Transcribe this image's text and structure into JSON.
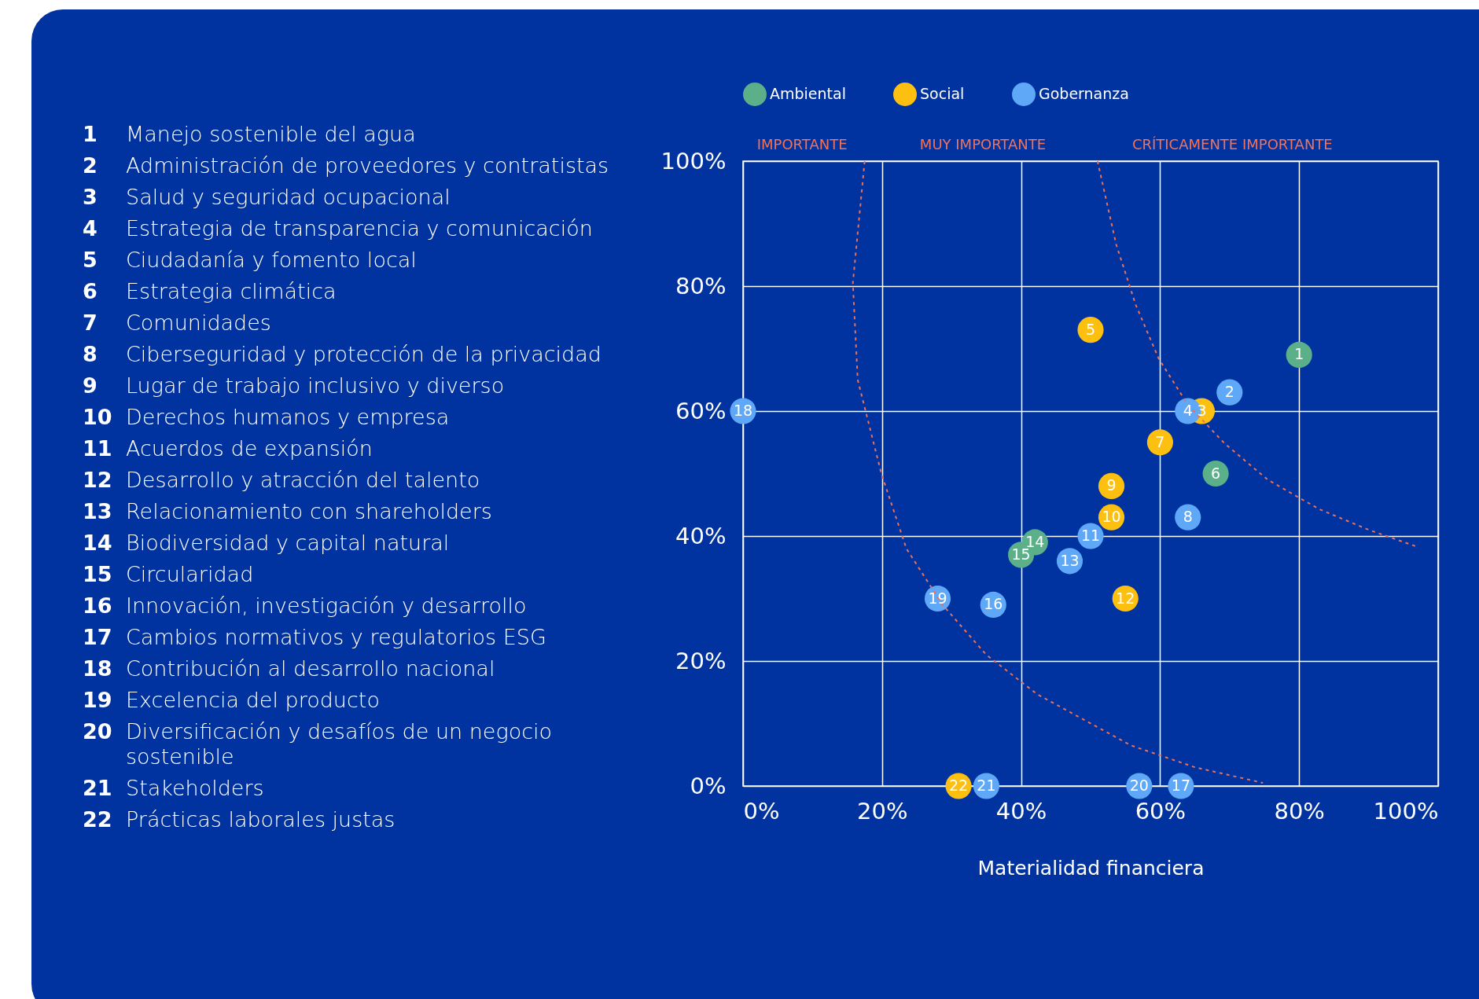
{
  "chart_data": {
    "type": "scatter",
    "xlabel": "Materialidad financiera",
    "xlim": [
      0,
      100
    ],
    "ylim": [
      0,
      100
    ],
    "xticks": [
      {
        "value": 0,
        "label": "0%"
      },
      {
        "value": 20,
        "label": "20%"
      },
      {
        "value": 40,
        "label": "40%"
      },
      {
        "value": 60,
        "label": "60%"
      },
      {
        "value": 80,
        "label": "80%"
      },
      {
        "value": 100,
        "label": "100%"
      }
    ],
    "yticks": [
      {
        "value": 0,
        "label": "0%"
      },
      {
        "value": 20,
        "label": "20%"
      },
      {
        "value": 40,
        "label": "40%"
      },
      {
        "value": 60,
        "label": "60%"
      },
      {
        "value": 80,
        "label": "80%"
      },
      {
        "value": 100,
        "label": "100%"
      }
    ],
    "grid": true,
    "legend": "top",
    "series": [
      {
        "name": "Ambiental",
        "color": "#5bb08a",
        "x": [
          80,
          68,
          42,
          40
        ],
        "values": [
          69,
          50,
          39,
          37
        ]
      },
      {
        "name": "Social",
        "color": "#fdc010",
        "x": [
          66,
          50,
          60,
          53,
          53,
          55,
          31
        ],
        "values": [
          60,
          73,
          55,
          48,
          43,
          30,
          0
        ]
      },
      {
        "name": "Gobernanza",
        "color": "#5fa8f7",
        "x": [
          70,
          64,
          64,
          50,
          47,
          36,
          63,
          0,
          28,
          57,
          35
        ],
        "values": [
          63,
          60,
          43,
          40,
          36,
          29,
          0,
          60,
          30,
          0,
          0
        ]
      },
      {
        "type": "line",
        "color": "#e8715a",
        "line_style": "dashed",
        "x": [
          17.5,
          15.8,
          16.5,
          19.9,
          23.5,
          28.7,
          35,
          42.3,
          55.8,
          65,
          74.8
        ],
        "values": [
          100,
          80.5,
          65,
          50,
          38,
          29,
          21,
          14.7,
          6.5,
          3,
          0.5
        ]
      },
      {
        "type": "line",
        "color": "#e8715a",
        "line_style": "dashed",
        "x": [
          51,
          53.7,
          56.5,
          59.8,
          64,
          69.3,
          75.5,
          82.9,
          90,
          97.2
        ],
        "values": [
          100,
          86.6,
          77,
          68.4,
          61,
          54.8,
          49,
          44.3,
          41,
          38.2
        ]
      }
    ],
    "annotations": [
      "IMPORTANTE",
      "MUY IMPORTANTE",
      "CRÍTICAMENTE IMPORTANTE",
      {
        "text": "1",
        "x": 80,
        "y": 69
      },
      {
        "text": "6",
        "x": 68,
        "y": 50
      },
      {
        "text": "14",
        "x": 42,
        "y": 39
      },
      {
        "text": "15",
        "x": 40,
        "y": 37
      },
      {
        "text": "3",
        "x": 66,
        "y": 60
      },
      {
        "text": "5",
        "x": 50,
        "y": 73
      },
      {
        "text": "7",
        "x": 60,
        "y": 55
      },
      {
        "text": "9",
        "x": 53,
        "y": 48
      },
      {
        "text": "10",
        "x": 53,
        "y": 43
      },
      {
        "text": "12",
        "x": 55,
        "y": 30
      },
      {
        "text": "22",
        "x": 31,
        "y": 0
      },
      {
        "text": "2",
        "x": 70,
        "y": 63
      },
      {
        "text": "4",
        "x": 64,
        "y": 60
      },
      {
        "text": "8",
        "x": 64,
        "y": 43
      },
      {
        "text": "11",
        "x": 50,
        "y": 40
      },
      {
        "text": "13",
        "x": 47,
        "y": 36
      },
      {
        "text": "16",
        "x": 36,
        "y": 29
      },
      {
        "text": "17",
        "x": 63,
        "y": 0
      },
      {
        "text": "18",
        "x": 0,
        "y": 60
      },
      {
        "text": "19",
        "x": 28,
        "y": 30
      },
      {
        "text": "20",
        "x": 57,
        "y": 0
      },
      {
        "text": "21",
        "x": 35,
        "y": 0
      },
      "1 Manejo sostenible del agua",
      "2 Administración de proveedores y contratistas",
      "3 Salud y seguridad ocupacional",
      "4 Estrategia de transparencia y comunicación",
      "5 Ciudadanía y fomento local",
      "6 Estrategia climática",
      "7 Comunidades",
      "8 Ciberseguridad y protección de la privacidad",
      "9 Lugar de trabajo inclusivo y diverso",
      "10 Derechos humanos y empresa",
      "11 Acuerdos de expansión",
      "12 Desarrollo y atracción del talento",
      "13 Relacionamiento con shareholders",
      "14 Biodiversidad y capital natural",
      "15 Circularidad",
      "16 Innovación, investigación y desarrollo",
      "17 Cambios normativos y regulatorios ESG",
      "18 Contribución al desarrollo nacional",
      "19 Excelencia del producto",
      "20 Diversificación y desafíos de un negocio sostenible",
      "21 Stakeholders",
      "22 Prácticas laborales justas"
    ]
  }
}
